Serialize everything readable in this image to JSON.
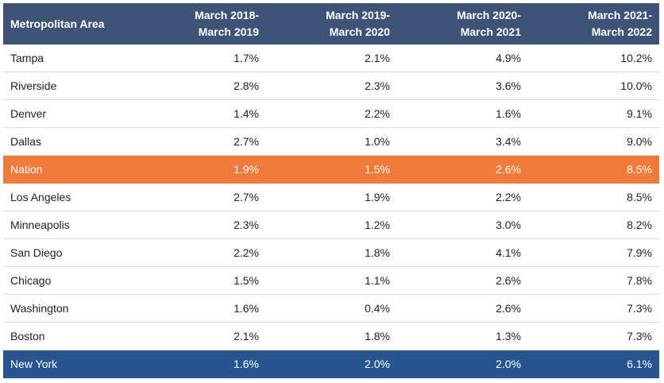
{
  "colors": {
    "header_bg": "#3f5377",
    "nation_highlight": "#ee7b3c",
    "newyork_highlight": "#285590"
  },
  "chart_data": {
    "type": "table",
    "columns": [
      "Metropolitan Area",
      "March 2018-\nMarch 2019",
      "March 2019-\nMarch 2020",
      "March 2020-\nMarch 2021",
      "March 2021-\nMarch 2022"
    ],
    "rows": [
      {
        "area": "Tampa",
        "values": [
          "1.7%",
          "2.1%",
          "4.9%",
          "10.2%"
        ],
        "highlight": ""
      },
      {
        "area": "Riverside",
        "values": [
          "2.8%",
          "2.3%",
          "3.6%",
          "10.0%"
        ],
        "highlight": ""
      },
      {
        "area": "Denver",
        "values": [
          "1.4%",
          "2.2%",
          "1.6%",
          "9.1%"
        ],
        "highlight": ""
      },
      {
        "area": "Dallas",
        "values": [
          "2.7%",
          "1.0%",
          "3.4%",
          "9.0%"
        ],
        "highlight": ""
      },
      {
        "area": "Nation",
        "values": [
          "1.9%",
          "1.5%",
          "2.6%",
          "8.5%"
        ],
        "highlight": "orange"
      },
      {
        "area": "Los Angeles",
        "values": [
          "2.7%",
          "1.9%",
          "2.2%",
          "8.5%"
        ],
        "highlight": ""
      },
      {
        "area": "Minneapolis",
        "values": [
          "2.3%",
          "1.2%",
          "3.0%",
          "8.2%"
        ],
        "highlight": ""
      },
      {
        "area": "San Diego",
        "values": [
          "2.2%",
          "1.8%",
          "4.1%",
          "7.9%"
        ],
        "highlight": ""
      },
      {
        "area": "Chicago",
        "values": [
          "1.5%",
          "1.1%",
          "2.6%",
          "7.8%"
        ],
        "highlight": ""
      },
      {
        "area": "Washington",
        "values": [
          "1.6%",
          "0.4%",
          "2.6%",
          "7.3%"
        ],
        "highlight": ""
      },
      {
        "area": "Boston",
        "values": [
          "2.1%",
          "1.8%",
          "1.3%",
          "7.3%"
        ],
        "highlight": ""
      },
      {
        "area": "New York",
        "values": [
          "1.6%",
          "2.0%",
          "2.0%",
          "6.1%"
        ],
        "highlight": "blue"
      }
    ]
  }
}
